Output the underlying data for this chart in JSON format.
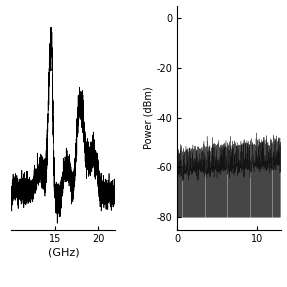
{
  "left_xlim": [
    10,
    22
  ],
  "left_xticks": [
    15,
    20
  ],
  "left_xlabel": "(GHz)",
  "right_xlim": [
    0,
    13
  ],
  "right_xticks": [
    0,
    10
  ],
  "right_ylim": [
    -85,
    5
  ],
  "right_yticks": [
    0,
    -20,
    -40,
    -60,
    -80
  ],
  "right_ylabel": "Power (dBm)",
  "background_color": "#ffffff",
  "line_color": "#000000"
}
